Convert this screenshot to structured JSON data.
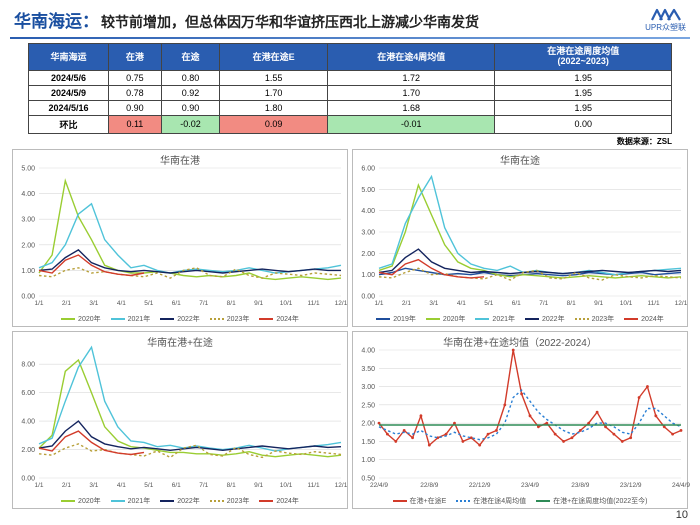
{
  "header": {
    "title_strong": "华南海运：",
    "title_rest": "较节前增加，但总体因万华和华谊挤压西北上游减少华南发货",
    "logo_text": "UPR众塑联"
  },
  "page_number": "10",
  "data_source": "数据来源：ZSL",
  "table": {
    "columns": [
      "华南海运",
      "在港",
      "在途",
      "在港在途E",
      "在港在途4周均值",
      "在港在途周度均值\n(2022~2023)"
    ],
    "rows": [
      {
        "label": "2024/5/6",
        "cells": [
          "0.75",
          "0.80",
          "1.55",
          "1.72",
          "1.95"
        ],
        "hl": [
          null,
          null,
          null,
          null,
          null
        ]
      },
      {
        "label": "2024/5/9",
        "cells": [
          "0.78",
          "0.92",
          "1.70",
          "1.70",
          "1.95"
        ],
        "hl": [
          null,
          null,
          null,
          null,
          null
        ]
      },
      {
        "label": "2024/5/16",
        "cells": [
          "0.90",
          "0.90",
          "1.80",
          "1.68",
          "1.95"
        ],
        "hl": [
          null,
          null,
          null,
          null,
          null
        ]
      },
      {
        "label": "环比",
        "cells": [
          "0.11",
          "-0.02",
          "0.09",
          "-0.01",
          "0.00"
        ],
        "hl": [
          "up",
          "dn",
          "up",
          "dn",
          null
        ]
      }
    ],
    "hl_colors": {
      "up": "#f28b82",
      "dn": "#a8e6b0"
    }
  },
  "palette": {
    "2019": "#1f4e9c",
    "2020": "#9acd32",
    "2021": "#4fc3d9",
    "2022": "#14245e",
    "2023": "#b8a03a",
    "2024": "#d23b2a",
    "grid": "#d9d9d9",
    "axis": "#888888",
    "text": "#555555"
  },
  "charts": [
    {
      "id": "c1",
      "title": "华南在港",
      "ylim": [
        0,
        5
      ],
      "ytick_step": 1,
      "xticks": [
        "1/1",
        "2/1",
        "3/1",
        "4/1",
        "5/1",
        "6/1",
        "7/1",
        "8/1",
        "9/1",
        "10/1",
        "11/1",
        "12/1"
      ],
      "legend": [
        {
          "label": "2020年",
          "color": "#9acd32",
          "dash": false
        },
        {
          "label": "2021年",
          "color": "#4fc3d9",
          "dash": false
        },
        {
          "label": "2022年",
          "color": "#14245e",
          "dash": false
        },
        {
          "label": "2023年",
          "color": "#b8a03a",
          "dash": true
        },
        {
          "label": "2024年",
          "color": "#d23b2a",
          "dash": false
        }
      ],
      "series": [
        {
          "color": "#9acd32",
          "dash": false,
          "data": [
            0.9,
            1.6,
            4.5,
            3.1,
            2.2,
            1.2,
            1.0,
            0.9,
            0.9,
            0.95,
            0.9,
            0.8,
            0.75,
            0.8,
            0.75,
            0.8,
            0.9,
            0.7,
            0.65,
            0.7,
            0.75,
            0.7,
            0.65,
            0.7
          ]
        },
        {
          "color": "#4fc3d9",
          "dash": false,
          "data": [
            1.1,
            1.3,
            2.0,
            3.2,
            3.6,
            2.2,
            1.6,
            1.1,
            1.2,
            1.0,
            0.9,
            1.0,
            1.05,
            1.0,
            0.95,
            1.0,
            1.1,
            1.0,
            0.9,
            0.95,
            1.0,
            1.05,
            1.1,
            1.2
          ]
        },
        {
          "color": "#14245e",
          "dash": false,
          "data": [
            1.0,
            1.05,
            1.5,
            1.8,
            1.3,
            1.1,
            1.0,
            0.95,
            1.0,
            0.95,
            0.9,
            0.95,
            1.0,
            0.95,
            0.9,
            0.95,
            1.0,
            1.05,
            1.0,
            0.95,
            1.0,
            1.05,
            1.0,
            1.0
          ]
        },
        {
          "color": "#b8a03a",
          "dash": true,
          "data": [
            0.8,
            0.75,
            1.0,
            1.1,
            0.9,
            0.95,
            0.85,
            0.8,
            0.75,
            0.9,
            0.7,
            1.0,
            1.1,
            0.8,
            0.75,
            1.05,
            0.8,
            0.7,
            0.9,
            0.85,
            0.8,
            0.9,
            0.85,
            0.8
          ]
        },
        {
          "color": "#d23b2a",
          "dash": false,
          "data": [
            1.0,
            0.9,
            1.4,
            1.6,
            1.2,
            0.95,
            0.85,
            0.8,
            0.9,
            null,
            null,
            null,
            null,
            null,
            null,
            null,
            null,
            null,
            null,
            null,
            null,
            null,
            null,
            null
          ]
        }
      ]
    },
    {
      "id": "c2",
      "title": "华南在途",
      "ylim": [
        0,
        6
      ],
      "ytick_step": 1,
      "xticks": [
        "1/1",
        "2/1",
        "3/1",
        "4/1",
        "5/1",
        "6/1",
        "7/1",
        "8/1",
        "9/1",
        "10/1",
        "11/1",
        "12/1"
      ],
      "legend": [
        {
          "label": "2019年",
          "color": "#1f4e9c",
          "dash": false
        },
        {
          "label": "2020年",
          "color": "#9acd32",
          "dash": false
        },
        {
          "label": "2021年",
          "color": "#4fc3d9",
          "dash": false
        },
        {
          "label": "2022年",
          "color": "#14245e",
          "dash": false
        },
        {
          "label": "2023年",
          "color": "#b8a03a",
          "dash": true
        },
        {
          "label": "2024年",
          "color": "#d23b2a",
          "dash": false
        }
      ],
      "series": [
        {
          "color": "#1f4e9c",
          "dash": false,
          "data": [
            1.0,
            1.1,
            1.3,
            1.2,
            1.1,
            1.0,
            1.05,
            1.0,
            1.1,
            1.0,
            0.95,
            1.0,
            1.05,
            1.0,
            0.95,
            1.0,
            1.1,
            1.05,
            1.0,
            1.05,
            1.1,
            1.0,
            1.05,
            1.1
          ]
        },
        {
          "color": "#9acd32",
          "dash": false,
          "data": [
            1.2,
            1.4,
            3.0,
            5.2,
            3.8,
            2.4,
            1.6,
            1.3,
            1.2,
            1.0,
            0.9,
            1.0,
            0.95,
            0.9,
            0.85,
            0.9,
            0.95,
            0.9,
            0.85,
            0.9,
            0.95,
            0.9,
            0.85,
            0.9
          ]
        },
        {
          "color": "#4fc3d9",
          "dash": false,
          "data": [
            1.3,
            1.5,
            3.4,
            4.6,
            5.6,
            3.2,
            2.0,
            1.5,
            1.3,
            1.2,
            1.4,
            1.1,
            1.2,
            1.1,
            1.05,
            1.1,
            1.2,
            1.1,
            1.0,
            1.1,
            1.15,
            1.2,
            1.25,
            1.3
          ]
        },
        {
          "color": "#14245e",
          "dash": false,
          "data": [
            1.1,
            1.2,
            1.8,
            2.2,
            1.6,
            1.3,
            1.2,
            1.1,
            1.15,
            1.1,
            1.05,
            1.1,
            1.15,
            1.1,
            1.05,
            1.1,
            1.15,
            1.2,
            1.15,
            1.1,
            1.15,
            1.2,
            1.15,
            1.2
          ]
        },
        {
          "color": "#b8a03a",
          "dash": true,
          "data": [
            0.9,
            0.85,
            1.1,
            1.3,
            1.0,
            1.05,
            0.9,
            0.85,
            0.8,
            1.0,
            0.75,
            1.1,
            1.2,
            0.85,
            0.8,
            1.1,
            0.85,
            0.75,
            1.0,
            0.9,
            0.85,
            0.95,
            0.9,
            0.85
          ]
        },
        {
          "color": "#d23b2a",
          "dash": false,
          "data": [
            1.1,
            1.0,
            1.5,
            1.7,
            1.3,
            1.0,
            0.9,
            0.85,
            0.9,
            null,
            null,
            null,
            null,
            null,
            null,
            null,
            null,
            null,
            null,
            null,
            null,
            null,
            null,
            null
          ]
        }
      ]
    },
    {
      "id": "c3",
      "title": "华南在港+在途",
      "ylim": [
        0,
        9
      ],
      "ytick_step": 2,
      "xticks": [
        "1/1",
        "2/1",
        "3/1",
        "4/1",
        "5/1",
        "6/1",
        "7/1",
        "8/1",
        "9/1",
        "10/1",
        "11/1",
        "12/1"
      ],
      "legend": [
        {
          "label": "2020年",
          "color": "#9acd32",
          "dash": false
        },
        {
          "label": "2021年",
          "color": "#4fc3d9",
          "dash": false
        },
        {
          "label": "2022年",
          "color": "#14245e",
          "dash": false
        },
        {
          "label": "2023年",
          "color": "#b8a03a",
          "dash": true
        },
        {
          "label": "2024年",
          "color": "#d23b2a",
          "dash": false
        }
      ],
      "series": [
        {
          "color": "#9acd32",
          "dash": false,
          "data": [
            2.1,
            3.0,
            7.5,
            8.3,
            6.0,
            3.6,
            2.6,
            2.2,
            2.1,
            1.95,
            1.8,
            1.8,
            1.7,
            1.7,
            1.6,
            1.7,
            1.85,
            1.6,
            1.5,
            1.6,
            1.7,
            1.6,
            1.5,
            1.6
          ]
        },
        {
          "color": "#4fc3d9",
          "dash": false,
          "data": [
            2.4,
            2.8,
            5.4,
            7.8,
            9.2,
            5.4,
            3.6,
            2.6,
            2.5,
            2.2,
            2.3,
            2.1,
            2.25,
            2.1,
            2.0,
            2.1,
            2.3,
            2.1,
            1.9,
            2.05,
            2.15,
            2.25,
            2.35,
            2.5
          ]
        },
        {
          "color": "#14245e",
          "dash": false,
          "data": [
            2.1,
            2.25,
            3.3,
            4.0,
            2.9,
            2.4,
            2.2,
            2.05,
            2.15,
            2.05,
            1.95,
            2.05,
            2.15,
            2.05,
            1.95,
            2.05,
            2.15,
            2.25,
            2.15,
            2.05,
            2.15,
            2.25,
            2.15,
            2.2
          ]
        },
        {
          "color": "#b8a03a",
          "dash": true,
          "data": [
            1.7,
            1.6,
            2.1,
            2.4,
            1.9,
            2.0,
            1.75,
            1.65,
            1.55,
            1.9,
            1.45,
            2.1,
            2.3,
            1.65,
            1.55,
            2.15,
            1.65,
            1.45,
            1.9,
            1.75,
            1.65,
            1.85,
            1.75,
            1.65
          ]
        },
        {
          "color": "#d23b2a",
          "dash": false,
          "data": [
            2.1,
            1.9,
            2.9,
            3.3,
            2.5,
            1.95,
            1.75,
            1.65,
            1.8,
            null,
            null,
            null,
            null,
            null,
            null,
            null,
            null,
            null,
            null,
            null,
            null,
            null,
            null,
            null
          ]
        }
      ]
    },
    {
      "id": "c4",
      "title": "华南在港+在途均值（2022-2024）",
      "ylim": [
        0.5,
        4
      ],
      "ytick_step": 0.5,
      "xticks": [
        "22/4/9",
        "22/8/9",
        "22/12/9",
        "23/4/9",
        "23/8/9",
        "23/12/9",
        "24/4/9"
      ],
      "legend": [
        {
          "label": "在港+在途E",
          "color": "#d23b2a",
          "dash": false
        },
        {
          "label": "在港在途4周均值",
          "color": "#2a7fd4",
          "dash": true
        },
        {
          "label": "在港+在途周度均值(2022至今)",
          "color": "#2e8b57",
          "dash": false
        }
      ],
      "series": [
        {
          "color": "#d23b2a",
          "dash": false,
          "marker": true,
          "data": [
            2.0,
            1.7,
            1.5,
            1.8,
            1.6,
            2.2,
            1.4,
            1.6,
            1.7,
            2.0,
            1.5,
            1.6,
            1.4,
            1.7,
            1.8,
            2.5,
            4.0,
            2.8,
            2.2,
            1.9,
            2.0,
            1.7,
            1.5,
            1.6,
            1.8,
            2.0,
            2.3,
            1.9,
            1.7,
            1.5,
            1.6,
            2.7,
            3.0,
            2.2,
            1.9,
            1.7,
            1.8
          ]
        },
        {
          "color": "#2a7fd4",
          "dash": true,
          "marker": false,
          "data": [
            1.9,
            1.8,
            1.7,
            1.75,
            1.7,
            1.8,
            1.65,
            1.6,
            1.65,
            1.75,
            1.65,
            1.6,
            1.55,
            1.6,
            1.7,
            2.0,
            2.7,
            2.9,
            2.6,
            2.3,
            2.1,
            1.95,
            1.8,
            1.7,
            1.75,
            1.85,
            2.0,
            2.0,
            1.9,
            1.75,
            1.7,
            2.0,
            2.4,
            2.4,
            2.2,
            2.0,
            1.9
          ]
        },
        {
          "color": "#2e8b57",
          "dash": false,
          "marker": false,
          "data": [
            1.95,
            1.95,
            1.95,
            1.95,
            1.95,
            1.95,
            1.95,
            1.95,
            1.95,
            1.95,
            1.95,
            1.95,
            1.95,
            1.95,
            1.95,
            1.95,
            1.95,
            1.95,
            1.95,
            1.95,
            1.95,
            1.95,
            1.95,
            1.95,
            1.95,
            1.95,
            1.95,
            1.95,
            1.95,
            1.95,
            1.95,
            1.95,
            1.95,
            1.95,
            1.95,
            1.95,
            1.95
          ]
        }
      ]
    }
  ]
}
